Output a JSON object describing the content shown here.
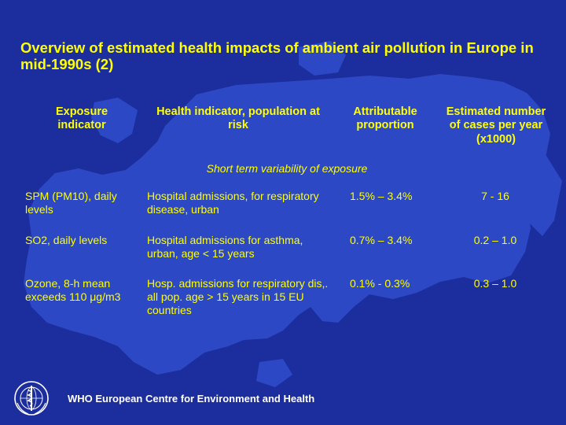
{
  "title": "Overview of estimated health impacts of ambient air pollution in Europe in mid-1990s (2)",
  "columns": [
    "Exposure indicator",
    "Health indicator, population at risk",
    "Attributable proportion",
    "Estimated number of cases per year (x1000)"
  ],
  "section_label": "Short term variability of exposure",
  "rows": [
    {
      "exposure": "SPM (PM10), daily levels",
      "health": "Hospital admissions, for respiratory disease, urban",
      "proportion": "1.5% – 3.4%",
      "cases": "7 - 16"
    },
    {
      "exposure": "SO2, daily levels",
      "health": "Hospital admissions for asthma, urban, age < 15 years",
      "proportion": "0.7% – 3.4%",
      "cases": "0.2 – 1.0"
    },
    {
      "exposure": "Ozone, 8-h mean exceeds 110 μg/m3",
      "health": "Hosp. admissions for respiratory dis,. all pop. age > 15 years in 15 EU countries",
      "proportion": "0.1% - 0.3%",
      "cases": "0.3 – 1.0"
    }
  ],
  "footer": "WHO European Centre for Environment and Health",
  "logo_icon": "who-emblem-icon",
  "colors": {
    "background": "#1c2e9e",
    "map": "#2c48c4",
    "text": "#ffff00",
    "footer_text": "#ffffff"
  }
}
